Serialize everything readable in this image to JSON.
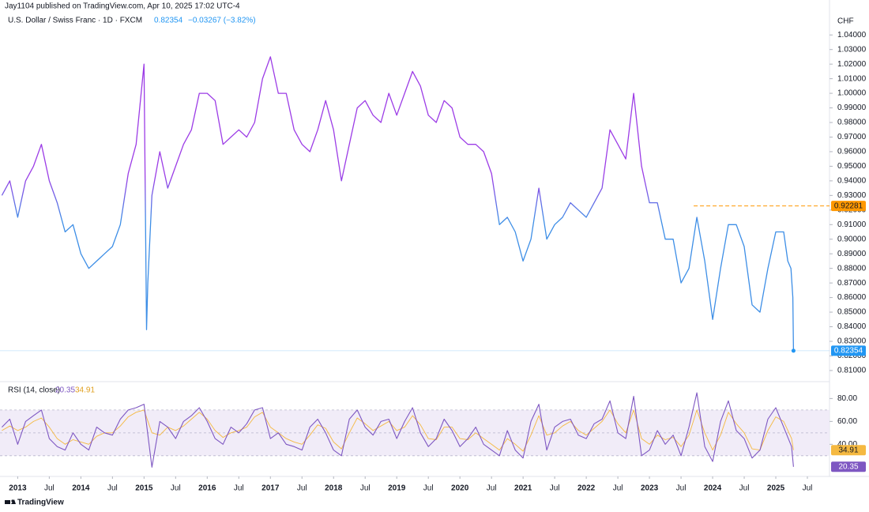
{
  "header": {
    "publisher": "Jay1104 published on TradingView.com, Apr 10, 2025 17:02 UTC-4",
    "symbol": "U.S. Dollar / Swiss Franc · 1D · FXCM",
    "change": "−0.03267 (−3.82%)",
    "brand": "TradingView"
  },
  "chart_data": [
    {
      "type": "line",
      "y_axis_label": "CHF",
      "colors": [
        "#9c3ce6",
        "#3d8ee6"
      ],
      "grid": false,
      "xlim": [
        2012.72,
        2025.85
      ],
      "xticks": [
        2013,
        {
          "value": 2013.5,
          "label": "Jul"
        },
        2014,
        {
          "value": 2014.5,
          "label": "Jul"
        },
        2015,
        {
          "value": 2015.5,
          "label": "Jul"
        },
        2016,
        {
          "value": 2016.5,
          "label": "Jul"
        },
        2017,
        {
          "value": 2017.5,
          "label": "Jul"
        },
        2018,
        {
          "value": 2018.5,
          "label": "Jul"
        },
        2019,
        {
          "value": 2019.5,
          "label": "Jul"
        },
        2020,
        {
          "value": 2020.5,
          "label": "Jul"
        },
        2021,
        {
          "value": 2021.5,
          "label": "Jul"
        },
        2022,
        {
          "value": 2022.5,
          "label": "Jul"
        },
        2023,
        {
          "value": 2023.5,
          "label": "Jul"
        },
        2024,
        {
          "value": 2024.5,
          "label": "Jul"
        },
        2025,
        {
          "value": 2025.5,
          "label": "Jul"
        }
      ],
      "ylim": [
        0.804,
        1.045
      ],
      "yticks": [
        {
          "value": 0.81,
          "label": "0.81000"
        },
        {
          "value": 0.82,
          "label": "0.82000"
        },
        {
          "value": 0.83,
          "label": "0.83000"
        },
        {
          "value": 0.84,
          "label": "0.84000"
        },
        {
          "value": 0.85,
          "label": "0.85000"
        },
        {
          "value": 0.86,
          "label": "0.86000"
        },
        {
          "value": 0.87,
          "label": "0.87000"
        },
        {
          "value": 0.88,
          "label": "0.88000"
        },
        {
          "value": 0.89,
          "label": "0.89000"
        },
        {
          "value": 0.9,
          "label": "0.90000"
        },
        {
          "value": 0.91,
          "label": "0.91000"
        },
        {
          "value": 0.92,
          "label": "0.92000"
        },
        {
          "value": 0.93,
          "label": "0.93000"
        },
        {
          "value": 0.94,
          "label": "0.94000"
        },
        {
          "value": 0.95,
          "label": "0.95000"
        },
        {
          "value": 0.96,
          "label": "0.96000"
        },
        {
          "value": 0.97,
          "label": "0.97000"
        },
        {
          "value": 0.98,
          "label": "0.98000"
        },
        {
          "value": 0.99,
          "label": "0.99000"
        },
        {
          "value": 1.0,
          "label": "1.00000"
        },
        {
          "value": 1.01,
          "label": "1.01000"
        },
        {
          "value": 1.02,
          "label": "1.02000"
        },
        {
          "value": 1.03,
          "label": "1.03000"
        },
        {
          "value": 1.04,
          "label": "1.04000"
        }
      ],
      "level": {
        "value": 0.92281,
        "x_start": 2023.7,
        "color": "#ff9800"
      },
      "last_color": "#2196f3",
      "x": [
        2012.75,
        2012.875,
        2013.0,
        2013.125,
        2013.25,
        2013.375,
        2013.5,
        2013.625,
        2013.75,
        2013.875,
        2014.0,
        2014.125,
        2014.25,
        2014.375,
        2014.5,
        2014.625,
        2014.75,
        2014.875,
        2015.0,
        2015.04,
        2015.06,
        2015.125,
        2015.25,
        2015.375,
        2015.5,
        2015.625,
        2015.75,
        2015.875,
        2016.0,
        2016.125,
        2016.25,
        2016.375,
        2016.5,
        2016.625,
        2016.75,
        2016.875,
        2017.0,
        2017.125,
        2017.25,
        2017.375,
        2017.5,
        2017.625,
        2017.75,
        2017.875,
        2018.0,
        2018.125,
        2018.25,
        2018.375,
        2018.5,
        2018.625,
        2018.75,
        2018.875,
        2019.0,
        2019.125,
        2019.25,
        2019.375,
        2019.5,
        2019.625,
        2019.75,
        2019.875,
        2020.0,
        2020.125,
        2020.25,
        2020.375,
        2020.5,
        2020.625,
        2020.75,
        2020.875,
        2021.0,
        2021.125,
        2021.25,
        2021.375,
        2021.5,
        2021.625,
        2021.75,
        2021.875,
        2022.0,
        2022.125,
        2022.25,
        2022.375,
        2022.5,
        2022.625,
        2022.75,
        2022.875,
        2023.0,
        2023.125,
        2023.25,
        2023.375,
        2023.5,
        2023.625,
        2023.75,
        2023.875,
        2024.0,
        2024.125,
        2024.25,
        2024.375,
        2024.5,
        2024.625,
        2024.75,
        2024.875,
        2025.0,
        2025.125,
        2025.19,
        2025.24,
        2025.27,
        2025.28
      ],
      "series": [
        {
          "values": [
            0.93,
            0.94,
            0.915,
            0.94,
            0.95,
            0.965,
            0.94,
            0.925,
            0.905,
            0.91,
            0.89,
            0.88,
            0.885,
            0.89,
            0.895,
            0.91,
            0.945,
            0.965,
            1.02,
            0.838,
            0.87,
            0.93,
            0.96,
            0.935,
            0.95,
            0.965,
            0.975,
            1.0,
            1.0,
            0.995,
            0.965,
            0.97,
            0.975,
            0.97,
            0.98,
            1.01,
            1.025,
            1.0,
            1.0,
            0.975,
            0.965,
            0.96,
            0.975,
            0.995,
            0.975,
            0.94,
            0.965,
            0.99,
            0.995,
            0.985,
            0.98,
            1.0,
            0.985,
            1.0,
            1.015,
            1.005,
            0.985,
            0.98,
            0.995,
            0.99,
            0.97,
            0.965,
            0.965,
            0.96,
            0.945,
            0.91,
            0.915,
            0.905,
            0.885,
            0.9,
            0.935,
            0.9,
            0.91,
            0.915,
            0.925,
            0.92,
            0.915,
            0.925,
            0.935,
            0.975,
            0.965,
            0.955,
            1.0,
            0.95,
            0.925,
            0.925,
            0.9,
            0.9,
            0.87,
            0.88,
            0.915,
            0.885,
            0.845,
            0.88,
            0.91,
            0.91,
            0.895,
            0.855,
            0.85,
            0.88,
            0.905,
            0.905,
            0.885,
            0.88,
            0.86,
            0.82354
          ]
        }
      ]
    },
    {
      "type": "line",
      "title": "RSI (14, close)",
      "ylim": [
        14,
        92
      ],
      "yticks": [
        {
          "value": 40,
          "label": "40.00"
        },
        {
          "value": 60,
          "label": "60.00"
        },
        {
          "value": 80,
          "label": "80.00"
        }
      ],
      "levels": [
        30,
        50,
        70
      ],
      "band_color": "#ede7f6",
      "x": [
        2012.75,
        2012.875,
        2013.0,
        2013.125,
        2013.25,
        2013.375,
        2013.5,
        2013.625,
        2013.75,
        2013.875,
        2014.0,
        2014.125,
        2014.25,
        2014.375,
        2014.5,
        2014.625,
        2014.75,
        2014.875,
        2015.0,
        2015.125,
        2015.25,
        2015.375,
        2015.5,
        2015.625,
        2015.75,
        2015.875,
        2016.0,
        2016.125,
        2016.25,
        2016.375,
        2016.5,
        2016.625,
        2016.75,
        2016.875,
        2017.0,
        2017.125,
        2017.25,
        2017.375,
        2017.5,
        2017.625,
        2017.75,
        2017.875,
        2018.0,
        2018.125,
        2018.25,
        2018.375,
        2018.5,
        2018.625,
        2018.75,
        2018.875,
        2019.0,
        2019.125,
        2019.25,
        2019.375,
        2019.5,
        2019.625,
        2019.75,
        2019.875,
        2020.0,
        2020.125,
        2020.25,
        2020.375,
        2020.5,
        2020.625,
        2020.75,
        2020.875,
        2021.0,
        2021.125,
        2021.25,
        2021.375,
        2021.5,
        2021.625,
        2021.75,
        2021.875,
        2022.0,
        2022.125,
        2022.25,
        2022.375,
        2022.5,
        2022.625,
        2022.75,
        2022.875,
        2023.0,
        2023.125,
        2023.25,
        2023.375,
        2023.5,
        2023.625,
        2023.75,
        2023.875,
        2024.0,
        2024.125,
        2024.25,
        2024.375,
        2024.5,
        2024.625,
        2024.75,
        2024.875,
        2025.0,
        2025.125,
        2025.25,
        2025.28
      ],
      "series": [
        {
          "color": "#7e57c2",
          "values": [
            55,
            62,
            40,
            60,
            65,
            70,
            45,
            38,
            35,
            50,
            40,
            35,
            55,
            50,
            48,
            62,
            70,
            72,
            75,
            20,
            60,
            55,
            45,
            60,
            65,
            72,
            60,
            45,
            40,
            55,
            50,
            58,
            70,
            72,
            45,
            50,
            40,
            38,
            35,
            55,
            62,
            50,
            35,
            30,
            62,
            70,
            55,
            48,
            60,
            62,
            45,
            60,
            72,
            50,
            38,
            45,
            62,
            52,
            38,
            45,
            55,
            40,
            35,
            30,
            52,
            35,
            28,
            60,
            75,
            35,
            55,
            60,
            62,
            48,
            45,
            58,
            62,
            78,
            50,
            45,
            82,
            30,
            35,
            52,
            40,
            48,
            30,
            55,
            85,
            38,
            25,
            60,
            78,
            52,
            45,
            28,
            35,
            62,
            72,
            55,
            38,
            20.35
          ]
        },
        {
          "color": "#f5b941",
          "values": [
            52,
            56,
            52,
            55,
            60,
            63,
            55,
            45,
            40,
            44,
            42,
            40,
            47,
            50,
            50,
            56,
            64,
            68,
            70,
            50,
            48,
            55,
            52,
            56,
            62,
            68,
            62,
            52,
            46,
            50,
            52,
            55,
            64,
            68,
            55,
            50,
            45,
            42,
            40,
            48,
            57,
            54,
            42,
            36,
            50,
            63,
            58,
            52,
            56,
            60,
            52,
            55,
            65,
            57,
            45,
            44,
            55,
            55,
            45,
            44,
            50,
            45,
            40,
            35,
            45,
            40,
            34,
            48,
            65,
            48,
            50,
            56,
            60,
            52,
            48,
            54,
            60,
            70,
            58,
            50,
            70,
            45,
            40,
            48,
            44,
            46,
            38,
            48,
            70,
            50,
            35,
            48,
            68,
            58,
            50,
            36,
            35,
            52,
            64,
            60,
            45,
            34.91
          ]
        }
      ]
    }
  ]
}
